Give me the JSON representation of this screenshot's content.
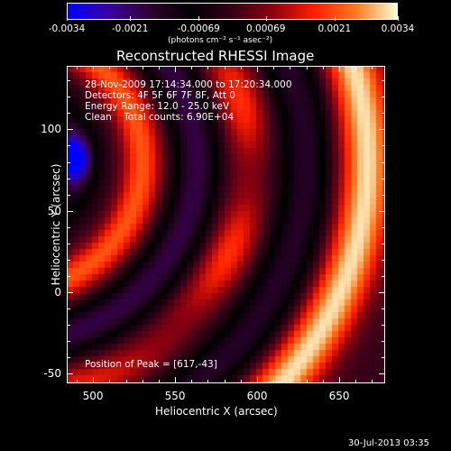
{
  "colors": {
    "background": "#000000",
    "colormap_stops": [
      "#0000ff",
      "#3a00a0",
      "#300030",
      "#000000",
      "#350018",
      "#900010",
      "#ff2000",
      "#ff7a20",
      "#ffffd8"
    ]
  },
  "colorbar": {
    "ticks": [
      "-0.0034",
      "-0.0021",
      "-0.00069",
      "0.00069",
      "0.0021",
      "0.0034"
    ],
    "unit_label": "(photons cm⁻² s⁻¹ asec⁻²)",
    "range": [
      -0.0034,
      0.0034
    ]
  },
  "chart_data": {
    "type": "heatmap",
    "title": "Reconstructed RHESSI Image",
    "xlabel": "Heliocentric X (arcsec)",
    "ylabel": "Heliocentric Y (arcsec)",
    "xlim": [
      484,
      678
    ],
    "ylim": [
      -56,
      139
    ],
    "xticks": [
      "500",
      "550",
      "600",
      "650"
    ],
    "yticks": [
      "-50",
      "0",
      "50",
      "100"
    ],
    "xtick_values": [
      500,
      550,
      600,
      650
    ],
    "ytick_values": [
      -50,
      0,
      50,
      100
    ],
    "peak": [
      617,
      -43
    ],
    "annotations": [
      "28-Nov-2009 17:14:34.000 to 17:20:34.000",
      "Detectors: 4F 5F 6F 7F 8F, Att 0",
      "Energy Range: 12.0 - 25.0 keV",
      "Clean    Total counts: 6.90E+04",
      "Position of Peak = [617,-43]"
    ]
  },
  "footer": {
    "date": "30-Jul-2013 03:35"
  }
}
